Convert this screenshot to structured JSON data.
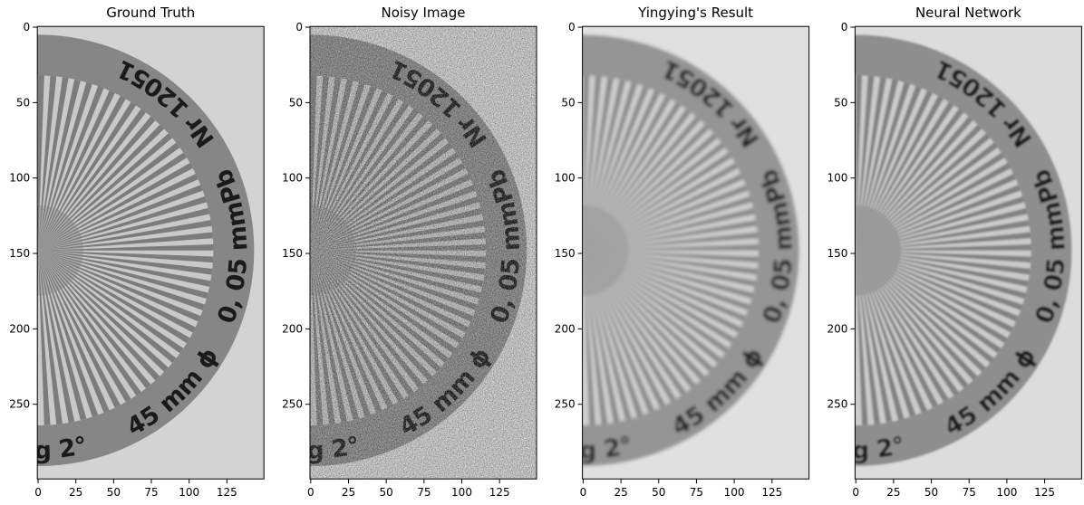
{
  "chart_data": [
    {
      "type": "image",
      "title": "Ground Truth",
      "xlim": [
        -0.5,
        149.5
      ],
      "ylim": [
        299.5,
        -0.5
      ],
      "xticks": [
        0,
        25,
        50,
        75,
        100,
        125
      ],
      "yticks": [
        0,
        50,
        100,
        150,
        200,
        250
      ],
      "annotations": [
        "g 2°",
        "45 mm ϕ",
        "0, 05 mmPb",
        "Nr 12051"
      ]
    },
    {
      "type": "image",
      "title": "Noisy Image",
      "xlim": [
        -0.5,
        149.5
      ],
      "ylim": [
        299.5,
        -0.5
      ],
      "xticks": [
        0,
        25,
        50,
        75,
        100,
        125
      ],
      "yticks": [
        0,
        50,
        100,
        150,
        200,
        250
      ],
      "annotations": [
        "g 2°",
        "45 mm ϕ",
        "0, 05 mmPb",
        "Nr 12051"
      ]
    },
    {
      "type": "image",
      "title": "Yingying's Result",
      "xlim": [
        -0.5,
        149.5
      ],
      "ylim": [
        299.5,
        -0.5
      ],
      "xticks": [
        0,
        25,
        50,
        75,
        100,
        125
      ],
      "yticks": [
        0,
        50,
        100,
        150,
        200,
        250
      ],
      "annotations": [
        "g 2°",
        "45 mm ϕ",
        "0, 05 mmPb",
        "Nr 12051"
      ]
    },
    {
      "type": "image",
      "title": "Neural Network",
      "xlim": [
        -0.5,
        149.5
      ],
      "ylim": [
        299.5,
        -0.5
      ],
      "xticks": [
        0,
        25,
        50,
        75,
        100,
        125
      ],
      "yticks": [
        0,
        50,
        100,
        150,
        200,
        250
      ],
      "annotations": [
        "g 2°",
        "45 mm ϕ",
        "0, 05 mmPb",
        "Nr 12051"
      ]
    }
  ]
}
